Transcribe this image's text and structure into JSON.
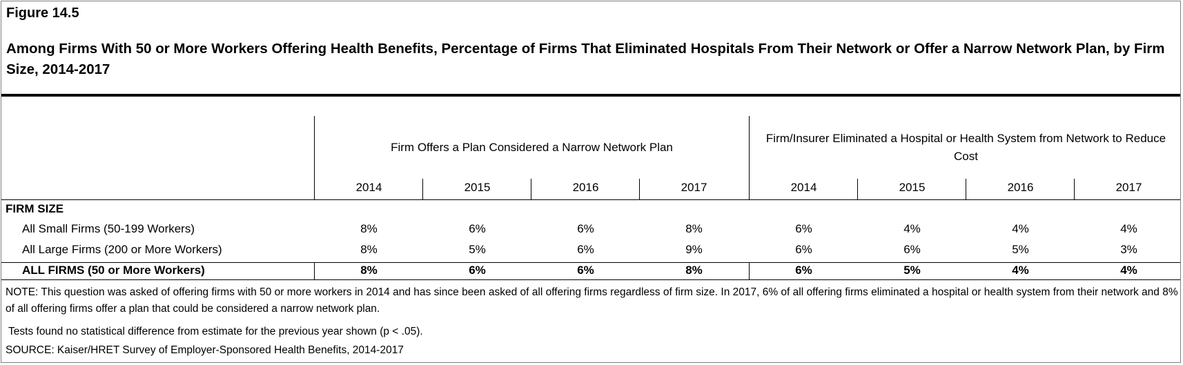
{
  "figure_label": "Figure 14.5",
  "title": "Among Firms With 50 or More Workers Offering Health Benefits, Percentage of Firms That Eliminated Hospitals From Their Network or Offer a Narrow Network Plan, by Firm Size, 2014-2017",
  "groups": [
    {
      "label": "Firm Offers a Plan Considered a Narrow Network Plan",
      "years": [
        "2014",
        "2015",
        "2016",
        "2017"
      ]
    },
    {
      "label": "Firm/Insurer Eliminated a Hospital or Health System from Network to Reduce Cost",
      "years": [
        "2014",
        "2015",
        "2016",
        "2017"
      ]
    }
  ],
  "section_label": "FIRM SIZE",
  "rows": [
    {
      "label": "All Small Firms (50-199 Workers)",
      "values": [
        "8%",
        "6%",
        "6%",
        "8%",
        "6%",
        "4%",
        "4%",
        "4%"
      ]
    },
    {
      "label": "All Large Firms (200 or More Workers)",
      "values": [
        "8%",
        "5%",
        "6%",
        "9%",
        "6%",
        "6%",
        "5%",
        "3%"
      ]
    }
  ],
  "total_row": {
    "label": "ALL FIRMS (50 or More Workers)",
    "values": [
      "8%",
      "6%",
      "6%",
      "8%",
      "6%",
      "5%",
      "4%",
      "4%"
    ]
  },
  "note": "NOTE: This question was asked of offering firms with 50 or more workers in 2014 and has since been asked of all offering firms regardless of firm size. In 2017, 6% of all offering firms eliminated a hospital or health system from their network and 8% of all offering firms offer a plan that could be considered a narrow network plan.",
  "test_note": " Tests found no statistical difference from estimate for the previous year shown (p < .05).",
  "source": "SOURCE: Kaiser/HRET Survey of Employer-Sponsored Health Benefits, 2014-2017"
}
